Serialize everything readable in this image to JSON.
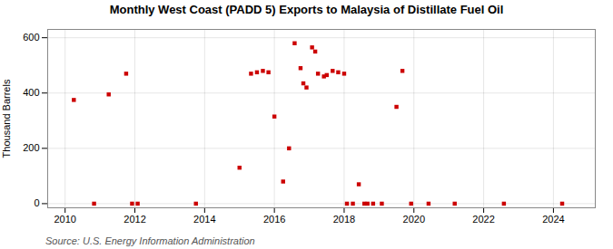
{
  "chart_data": {
    "type": "scatter",
    "title": "Monthly West Coast (PADD 5) Exports to Malaysia of Distillate Fuel Oil",
    "ylabel": "Thousand Barrels",
    "source": "Source: U.S. Energy Information Administration",
    "color": "#cc0000",
    "marker": "square",
    "grid": true,
    "xlim": [
      2009.5,
      2025.2
    ],
    "ylim": [
      -15,
      630
    ],
    "xticks": [
      2010,
      2012,
      2014,
      2016,
      2018,
      2020,
      2022,
      2024
    ],
    "yticks": [
      0,
      200,
      400,
      600
    ],
    "x": [
      2010.25,
      2010.83,
      2011.25,
      2011.75,
      2011.92,
      2012.08,
      2013.75,
      2015.0,
      2015.33,
      2015.5,
      2015.67,
      2015.83,
      2016.0,
      2016.25,
      2016.42,
      2016.58,
      2016.75,
      2016.83,
      2016.92,
      2017.08,
      2017.17,
      2017.25,
      2017.42,
      2017.5,
      2017.67,
      2017.83,
      2018.0,
      2018.08,
      2018.25,
      2018.42,
      2018.58,
      2018.67,
      2018.83,
      2019.08,
      2019.5,
      2019.67,
      2019.92,
      2020.42,
      2021.17,
      2022.58,
      2024.25
    ],
    "values": [
      375,
      0,
      395,
      470,
      0,
      0,
      0,
      130,
      470,
      475,
      480,
      475,
      315,
      80,
      200,
      580,
      490,
      435,
      420,
      565,
      550,
      470,
      460,
      465,
      480,
      475,
      470,
      0,
      0,
      70,
      0,
      0,
      0,
      0,
      350,
      480,
      0,
      0,
      0,
      0,
      0
    ]
  }
}
